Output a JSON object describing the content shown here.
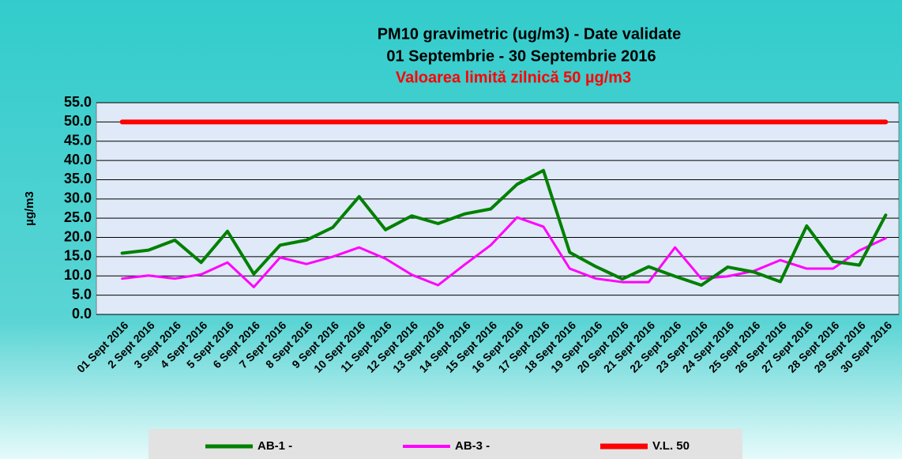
{
  "chart_data": {
    "type": "line",
    "title": "PM10 gravimetric (ug/m3) - Date validate",
    "subtitle": "01 Septembrie - 30 Septembrie 2016",
    "annotation": "Valoarea limită zilnică 50 µg/m3",
    "y_label": "µg/m3",
    "categories": [
      "01 Sept 2016",
      "2 Sept 2016",
      "3 Sept 2016",
      "4 Sept 2016",
      "5 Sept 2016",
      "6 Sept 2016",
      "7 Sept 2016",
      "8 Sept 2016",
      "9 Sept 2016",
      "10 Sept 2016",
      "11 Sept 2016",
      "12 Sept 2016",
      "13 Sept 2016",
      "14 Sept 2016",
      "15 Sept 2016",
      "16 Sept 2016",
      "17 Sept 2016",
      "18 Sept 2016",
      "19 Sept 2016",
      "20 Sept 2016",
      "21 Sept 2016",
      "22 Sept 2016",
      "23 Sept 2016",
      "24 Sept 2016",
      "25 Sept 2016",
      "26 Sept 2016",
      "27 Sept 2016",
      "28 Sept 2016",
      "29 Sept 2016",
      "30 Sept 2016"
    ],
    "series": [
      {
        "name": "AB-1 -",
        "color": "#008000",
        "width": 4,
        "values": [
          15.9,
          16.7,
          19.3,
          13.5,
          21.6,
          10.5,
          18.0,
          19.3,
          22.6,
          30.6,
          22.0,
          25.6,
          23.6,
          26.1,
          27.4,
          33.8,
          37.4,
          16.1,
          12.4,
          9.2,
          12.4,
          9.9,
          7.6,
          12.3,
          11.0,
          8.5,
          23.0,
          13.8,
          12.8,
          25.8
        ]
      },
      {
        "name": "AB-3 -",
        "color": "#ff00ff",
        "width": 3,
        "values": [
          9.3,
          10.1,
          9.3,
          10.4,
          13.5,
          7.1,
          14.8,
          13.1,
          15.0,
          17.4,
          14.5,
          10.3,
          7.6,
          12.9,
          18.0,
          25.2,
          22.8,
          11.9,
          9.3,
          8.4,
          8.4,
          17.4,
          9.3,
          9.9,
          11.3,
          14.1,
          11.9,
          11.9,
          16.6,
          19.8
        ]
      },
      {
        "name": "V.L. 50",
        "color": "#ff0000",
        "width": 6,
        "values": [
          50,
          50,
          50,
          50,
          50,
          50,
          50,
          50,
          50,
          50,
          50,
          50,
          50,
          50,
          50,
          50,
          50,
          50,
          50,
          50,
          50,
          50,
          50,
          50,
          50,
          50,
          50,
          50,
          50,
          50
        ]
      }
    ],
    "ylim": [
      0,
      55
    ],
    "yticks": [
      {
        "value": 0,
        "label": "0.0"
      },
      {
        "value": 5,
        "label": "5.0"
      },
      {
        "value": 10,
        "label": "10.0"
      },
      {
        "value": 15,
        "label": "15.0"
      },
      {
        "value": 20,
        "label": "20.0"
      },
      {
        "value": 25,
        "label": "25.0"
      },
      {
        "value": 30,
        "label": "30.0"
      },
      {
        "value": 35,
        "label": "35.0"
      },
      {
        "value": 40,
        "label": "40.0"
      },
      {
        "value": 45,
        "label": "45.0"
      },
      {
        "value": 50,
        "label": "50.0"
      },
      {
        "value": 55,
        "label": "55.0"
      }
    ],
    "grid": true,
    "legend": "bottom"
  }
}
